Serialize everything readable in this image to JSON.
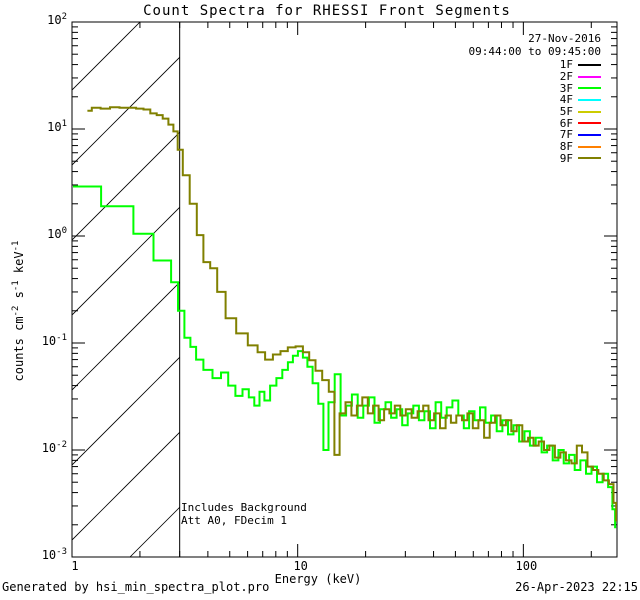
{
  "title": "Count Spectra for RHESSI Front Segments",
  "header": {
    "date_line1": "27-Nov-2016",
    "date_line2": "09:44:00 to 09:45:00"
  },
  "legend": {
    "items": [
      {
        "label": "1F",
        "color": "#000000"
      },
      {
        "label": "2F",
        "color": "#FF00FF"
      },
      {
        "label": "3F",
        "color": "#00FF00"
      },
      {
        "label": "4F",
        "color": "#00FFFF"
      },
      {
        "label": "5F",
        "color": "#CCCC00"
      },
      {
        "label": "6F",
        "color": "#FF0000"
      },
      {
        "label": "7F",
        "color": "#0000FF"
      },
      {
        "label": "8F",
        "color": "#FF8000"
      },
      {
        "label": "9F",
        "color": "#808000"
      }
    ]
  },
  "annotations": {
    "line1": "Includes Background",
    "line2": "Att A0, FDecim 1"
  },
  "footer": {
    "left": "Generated by hsi_min_spectra_plot.pro",
    "right": "26-Apr-2023 22:15"
  },
  "chart_data": {
    "type": "line",
    "x_scale": "log",
    "y_scale": "log",
    "xlabel": "Energy (keV)",
    "ylabel_parts": [
      [
        "t",
        "counts cm"
      ],
      [
        "sup",
        "-2"
      ],
      [
        "t",
        " s"
      ],
      [
        "sup",
        "-1"
      ],
      [
        "t",
        " keV"
      ],
      [
        "sup",
        "-1"
      ]
    ],
    "xlim": [
      1,
      260
    ],
    "ylim": [
      0.001,
      100
    ],
    "x_ticks": [
      {
        "label": "1",
        "value": 1
      },
      {
        "label": "10",
        "value": 10
      },
      {
        "label": "100",
        "value": 100
      }
    ],
    "y_ticks": [
      {
        "base": "10",
        "exp": "2",
        "value": 100
      },
      {
        "base": "10",
        "exp": "1",
        "value": 10
      },
      {
        "base": "10",
        "exp": "0",
        "value": 1
      },
      {
        "base": "10",
        "exp": "-1",
        "value": 0.1
      },
      {
        "base": "10",
        "exp": "-2",
        "value": 0.01
      },
      {
        "base": "10",
        "exp": "-3",
        "value": 0.001
      }
    ],
    "hatch_region": {
      "from_kev": 1,
      "to_kev": 3
    },
    "series": [
      {
        "name": "3F",
        "color": "#00FF00",
        "points": [
          [
            1.01,
            2.9
          ],
          [
            1.25,
            2.9
          ],
          [
            1.45,
            1.9
          ],
          [
            1.75,
            1.9
          ],
          [
            2.0,
            1.05
          ],
          [
            2.2,
            1.05
          ],
          [
            2.4,
            0.59
          ],
          [
            2.65,
            0.59
          ],
          [
            2.85,
            0.37
          ],
          [
            3.05,
            0.2
          ],
          [
            3.25,
            0.112
          ],
          [
            3.45,
            0.092
          ],
          [
            3.65,
            0.07
          ],
          [
            4.0,
            0.056
          ],
          [
            4.4,
            0.047
          ],
          [
            4.75,
            0.053
          ],
          [
            5.1,
            0.04
          ],
          [
            5.5,
            0.032
          ],
          [
            5.9,
            0.037
          ],
          [
            6.25,
            0.031
          ],
          [
            6.6,
            0.026
          ],
          [
            6.95,
            0.035
          ],
          [
            7.3,
            0.029
          ],
          [
            7.8,
            0.04
          ],
          [
            8.3,
            0.047
          ],
          [
            8.8,
            0.056
          ],
          [
            9.3,
            0.066
          ],
          [
            9.75,
            0.076
          ],
          [
            10.3,
            0.084
          ],
          [
            10.8,
            0.073
          ],
          [
            11.3,
            0.06
          ],
          [
            12.0,
            0.042
          ],
          [
            12.7,
            0.027
          ],
          [
            13.3,
            0.01
          ],
          [
            14.1,
            0.028
          ],
          [
            15.1,
            0.051
          ],
          [
            15.9,
            0.021
          ],
          [
            16.9,
            0.026
          ],
          [
            17.9,
            0.033
          ],
          [
            19.0,
            0.02
          ],
          [
            20.1,
            0.026
          ],
          [
            21.3,
            0.031
          ],
          [
            22.5,
            0.018
          ],
          [
            23.8,
            0.024
          ],
          [
            25.2,
            0.028
          ],
          [
            26.7,
            0.02
          ],
          [
            28.2,
            0.024
          ],
          [
            29.9,
            0.017
          ],
          [
            31.6,
            0.022
          ],
          [
            33.5,
            0.026
          ],
          [
            35.4,
            0.019
          ],
          [
            37.5,
            0.023
          ],
          [
            39.7,
            0.016
          ],
          [
            42.0,
            0.028
          ],
          [
            44.5,
            0.02
          ],
          [
            47.0,
            0.025
          ],
          [
            50.0,
            0.029
          ],
          [
            53.0,
            0.021
          ],
          [
            56.0,
            0.016
          ],
          [
            59.0,
            0.023
          ],
          [
            62.5,
            0.019
          ],
          [
            66.0,
            0.025
          ],
          [
            70.0,
            0.018
          ],
          [
            74.0,
            0.021
          ],
          [
            78.5,
            0.015
          ],
          [
            83.0,
            0.019
          ],
          [
            88.0,
            0.014
          ],
          [
            93.0,
            0.017
          ],
          [
            98.5,
            0.012
          ],
          [
            104,
            0.015
          ],
          [
            110,
            0.011
          ],
          [
            117,
            0.013
          ],
          [
            124,
            0.0095
          ],
          [
            131,
            0.011
          ],
          [
            139,
            0.008
          ],
          [
            147,
            0.01
          ],
          [
            155,
            0.0075
          ],
          [
            164,
            0.009
          ],
          [
            174,
            0.0065
          ],
          [
            184,
            0.008
          ],
          [
            195,
            0.006
          ],
          [
            206,
            0.007
          ],
          [
            218,
            0.005
          ],
          [
            231,
            0.006
          ],
          [
            244,
            0.0045
          ],
          [
            252,
            0.0028
          ],
          [
            258,
            0.0019
          ]
        ]
      },
      {
        "name": "9F",
        "color": "#808000",
        "points": [
          [
            1.17,
            14.8
          ],
          [
            1.28,
            15.8
          ],
          [
            1.4,
            15.5
          ],
          [
            1.55,
            16.0
          ],
          [
            1.7,
            15.8
          ],
          [
            1.85,
            15.8
          ],
          [
            2.0,
            15.5
          ],
          [
            2.15,
            15.2
          ],
          [
            2.3,
            14.0
          ],
          [
            2.45,
            13.5
          ],
          [
            2.6,
            12.5
          ],
          [
            2.75,
            11.0
          ],
          [
            2.88,
            9.5
          ],
          [
            3.0,
            6.4
          ],
          [
            3.2,
            3.7
          ],
          [
            3.45,
            2.0
          ],
          [
            3.7,
            1.02
          ],
          [
            3.95,
            0.57
          ],
          [
            4.25,
            0.5
          ],
          [
            4.55,
            0.3
          ],
          [
            5.05,
            0.17
          ],
          [
            5.65,
            0.123
          ],
          [
            6.4,
            0.095
          ],
          [
            6.9,
            0.082
          ],
          [
            7.45,
            0.07
          ],
          [
            8.1,
            0.078
          ],
          [
            8.7,
            0.084
          ],
          [
            9.4,
            0.091
          ],
          [
            10.2,
            0.093
          ],
          [
            10.9,
            0.082
          ],
          [
            11.6,
            0.069
          ],
          [
            12.4,
            0.055
          ],
          [
            13.3,
            0.045
          ],
          [
            14.2,
            0.035
          ],
          [
            14.9,
            0.009
          ],
          [
            15.8,
            0.022
          ],
          [
            16.8,
            0.028
          ],
          [
            17.8,
            0.021
          ],
          [
            18.8,
            0.026
          ],
          [
            19.9,
            0.031
          ],
          [
            21.0,
            0.022
          ],
          [
            22.2,
            0.026
          ],
          [
            23.5,
            0.019
          ],
          [
            24.8,
            0.024
          ],
          [
            26.2,
            0.022
          ],
          [
            27.7,
            0.026
          ],
          [
            29.3,
            0.021
          ],
          [
            31.0,
            0.024
          ],
          [
            33.0,
            0.02
          ],
          [
            35.0,
            0.023
          ],
          [
            37.0,
            0.026
          ],
          [
            39.0,
            0.019
          ],
          [
            41.5,
            0.022
          ],
          [
            44.0,
            0.016
          ],
          [
            46.5,
            0.021
          ],
          [
            49.0,
            0.018
          ],
          [
            52.0,
            0.021
          ],
          [
            55.0,
            0.019
          ],
          [
            58.0,
            0.022
          ],
          [
            61.5,
            0.016
          ],
          [
            65.0,
            0.019
          ],
          [
            69.0,
            0.013
          ],
          [
            73.0,
            0.018
          ],
          [
            77.0,
            0.021
          ],
          [
            81.5,
            0.017
          ],
          [
            86.0,
            0.019
          ],
          [
            91.0,
            0.015
          ],
          [
            96.0,
            0.017
          ],
          [
            102,
            0.012
          ],
          [
            108,
            0.013
          ],
          [
            114,
            0.011
          ],
          [
            120,
            0.012
          ],
          [
            127,
            0.01
          ],
          [
            134,
            0.011
          ],
          [
            142,
            0.0085
          ],
          [
            150,
            0.0095
          ],
          [
            159,
            0.008
          ],
          [
            168,
            0.0075
          ],
          [
            177,
            0.011
          ],
          [
            187,
            0.0095
          ],
          [
            198,
            0.007
          ],
          [
            209,
            0.0065
          ],
          [
            221,
            0.006
          ],
          [
            233,
            0.0052
          ],
          [
            246,
            0.0048
          ],
          [
            256,
            0.0032
          ],
          [
            260,
            0.0022
          ]
        ]
      }
    ]
  }
}
